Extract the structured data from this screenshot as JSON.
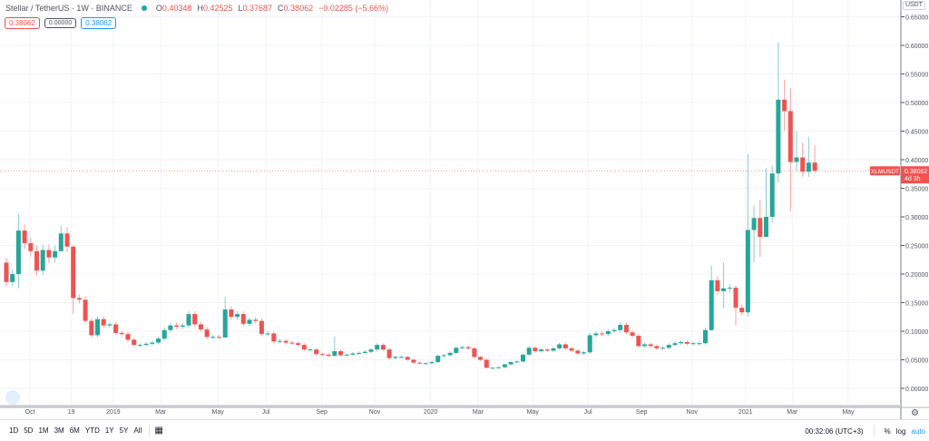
{
  "legend": {
    "symbol": "Stellar / TetherUS · 1W · BINANCE",
    "o_label": "O",
    "o": "0.40348",
    "h_label": "H",
    "h": "0.42525",
    "l_label": "L",
    "l": "0.37687",
    "c_label": "C",
    "c": "0.38062",
    "change": "−0.02285 (−5.66%)"
  },
  "badges": {
    "bid": "0.38062",
    "spread": "0.00000",
    "ask": "0.38062"
  },
  "currency": "USDT",
  "price_tag": {
    "symbol": "XLMUSDT",
    "price": "0.38062",
    "countdown": "4d 3h"
  },
  "colors": {
    "up": "#26a69a",
    "down": "#ef5350",
    "grid": "#f0f3fa",
    "accent": "#2196f3"
  },
  "chart_data": {
    "type": "candlestick",
    "title": "Stellar / TetherUS · 1W · BINANCE",
    "ylim": [
      -0.02,
      0.66
    ],
    "yticks": [
      "0.65000",
      "0.60000",
      "0.55000",
      "0.50000",
      "0.45000",
      "0.40000",
      "0.35000",
      "0.30000",
      "0.25000",
      "0.20000",
      "0.15000",
      "0.10000",
      "0.05000",
      "0.00000"
    ],
    "first_open": 0.22,
    "closes": [
      0.186,
      0.2,
      0.276,
      0.254,
      0.24,
      0.206,
      0.242,
      0.229,
      0.24,
      0.271,
      0.248,
      0.158,
      0.155,
      0.118,
      0.093,
      0.121,
      0.11,
      0.112,
      0.097,
      0.095,
      0.085,
      0.076,
      0.076,
      0.078,
      0.08,
      0.087,
      0.102,
      0.11,
      0.108,
      0.11,
      0.13,
      0.112,
      0.103,
      0.09,
      0.09,
      0.089,
      0.138,
      0.125,
      0.13,
      0.113,
      0.12,
      0.118,
      0.095,
      0.096,
      0.082,
      0.083,
      0.08,
      0.079,
      0.076,
      0.068,
      0.068,
      0.06,
      0.059,
      0.057,
      0.065,
      0.058,
      0.059,
      0.061,
      0.062,
      0.064,
      0.068,
      0.076,
      0.068,
      0.053,
      0.055,
      0.055,
      0.05,
      0.045,
      0.044,
      0.044,
      0.046,
      0.057,
      0.058,
      0.062,
      0.071,
      0.072,
      0.07,
      0.055,
      0.05,
      0.036,
      0.036,
      0.037,
      0.042,
      0.046,
      0.047,
      0.059,
      0.071,
      0.065,
      0.068,
      0.066,
      0.07,
      0.077,
      0.07,
      0.066,
      0.061,
      0.063,
      0.093,
      0.096,
      0.095,
      0.1,
      0.102,
      0.111,
      0.098,
      0.092,
      0.074,
      0.077,
      0.074,
      0.07,
      0.071,
      0.076,
      0.079,
      0.081,
      0.078,
      0.079,
      0.079,
      0.102,
      0.189,
      0.17,
      0.175,
      0.176,
      0.141,
      0.133,
      0.277,
      0.298,
      0.265,
      0.3,
      0.376,
      0.505,
      0.485,
      0.396,
      0.404,
      0.379,
      0.395,
      0.38062
    ],
    "wick_default_pct": 4,
    "wicks": {
      "2": [
        0.305,
        0.175
      ],
      "9": [
        0.285,
        0.24
      ],
      "11": [
        0.25,
        0.13
      ],
      "36": [
        0.16,
        0.09
      ],
      "54": [
        0.09,
        0.055
      ],
      "116": [
        0.215,
        0.1
      ],
      "118": [
        0.22,
        0.14
      ],
      "120": [
        0.18,
        0.11
      ],
      "122": [
        0.41,
        0.125
      ],
      "123": [
        0.32,
        0.22
      ],
      "124": [
        0.33,
        0.23
      ],
      "125": [
        0.385,
        0.29
      ],
      "126": [
        0.39,
        0.29
      ],
      "127": [
        0.605,
        0.36
      ],
      "128": [
        0.54,
        0.45
      ],
      "129": [
        0.525,
        0.31
      ],
      "130": [
        0.45,
        0.38
      ],
      "131": [
        0.43,
        0.37
      ],
      "132": [
        0.44,
        0.37
      ],
      "133": [
        0.42525,
        0.37687
      ]
    },
    "xticks": [
      {
        "label": "Oct",
        "at": 3.9
      },
      {
        "label": "19",
        "at": 10.7
      },
      {
        "label": "2019",
        "at": 17.6
      },
      {
        "label": "Mar",
        "at": 25.4
      },
      {
        "label": "May",
        "at": 34.8
      },
      {
        "label": "Jul",
        "at": 42.7
      },
      {
        "label": "Sep",
        "at": 51.9
      },
      {
        "label": "Nov",
        "at": 60.6
      },
      {
        "label": "2020",
        "at": 69.8
      },
      {
        "label": "Mar",
        "at": 77.6
      },
      {
        "label": "May",
        "at": 86.6
      },
      {
        "label": "Jul",
        "at": 95.7
      },
      {
        "label": "Sep",
        "at": 104.5
      },
      {
        "label": "Nov",
        "at": 112.8
      },
      {
        "label": "2021",
        "at": 121.6
      },
      {
        "label": "Mar",
        "at": 129.3
      },
      {
        "label": "May",
        "at": 138.5
      }
    ],
    "last_price": 0.38062
  },
  "toolbar": {
    "ranges": [
      "1D",
      "5D",
      "1M",
      "3M",
      "6M",
      "YTD",
      "1Y",
      "5Y",
      "All"
    ],
    "time": "00:32:06 (UTC+3)",
    "percent": "%",
    "log": "log",
    "auto": "auto"
  }
}
